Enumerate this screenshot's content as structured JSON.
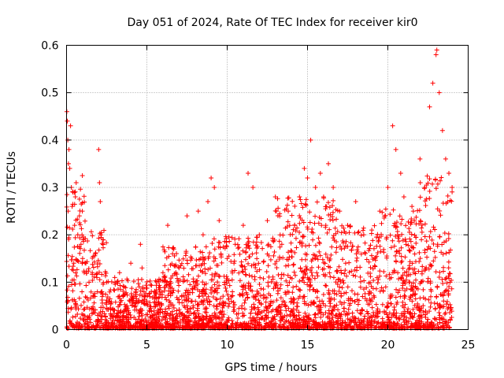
{
  "chart_data": {
    "type": "scatter",
    "title": "Day 051 of 2024, Rate Of TEC Index for receiver kir0",
    "xlabel": "GPS time / hours",
    "ylabel": "ROTI / TECUs",
    "xlim": [
      0,
      25
    ],
    "ylim": [
      0,
      0.6
    ],
    "xticks": [
      "0",
      "5",
      "10",
      "15",
      "20",
      "25"
    ],
    "yticks": [
      "0",
      "0.1",
      "0.2",
      "0.3",
      "0.4",
      "0.5",
      "0.6"
    ],
    "grid": true,
    "marker": "+",
    "color": "#ff0000",
    "series": [
      {
        "name": "ROTI",
        "x": [
          0.02,
          0.05,
          0.08,
          0.1,
          0.12,
          0.15,
          0.2,
          0.25,
          0.3,
          0.35,
          0.4,
          0.5,
          0.55,
          0.6,
          0.7,
          0.8,
          0.9,
          1.0,
          1.1,
          1.2,
          1.4,
          1.6,
          1.8,
          2.0,
          2.05,
          2.1,
          2.2,
          2.5,
          3.0,
          3.3,
          3.6,
          4.0,
          4.3,
          4.6,
          4.7,
          5.0,
          5.5,
          6.0,
          6.3,
          6.6,
          7.0,
          7.5,
          7.8,
          8.2,
          8.5,
          8.8,
          9.0,
          9.2,
          9.5,
          10.0,
          10.5,
          11.0,
          11.3,
          11.6,
          12.0,
          12.5,
          13.0,
          13.4,
          13.8,
          14.2,
          14.5,
          14.8,
          15.0,
          15.2,
          15.5,
          15.8,
          16.0,
          16.3,
          16.6,
          17.0,
          17.5,
          18.0,
          18.5,
          19.0,
          19.5,
          20.0,
          20.3,
          20.5,
          20.8,
          21.0,
          21.5,
          22.0,
          22.3,
          22.6,
          22.8,
          23.0,
          23.05,
          23.2,
          23.4,
          23.6,
          23.8,
          24.0
        ],
        "y": [
          0.46,
          0.44,
          0.4,
          0.25,
          0.35,
          0.38,
          0.34,
          0.43,
          0.3,
          0.26,
          0.29,
          0.22,
          0.28,
          0.31,
          0.2,
          0.24,
          0.18,
          0.15,
          0.12,
          0.14,
          0.1,
          0.12,
          0.16,
          0.38,
          0.31,
          0.27,
          0.08,
          0.1,
          0.11,
          0.12,
          0.09,
          0.14,
          0.07,
          0.18,
          0.13,
          0.06,
          0.08,
          0.12,
          0.22,
          0.16,
          0.13,
          0.24,
          0.15,
          0.25,
          0.2,
          0.27,
          0.32,
          0.3,
          0.23,
          0.15,
          0.18,
          0.22,
          0.33,
          0.3,
          0.2,
          0.23,
          0.28,
          0.18,
          0.25,
          0.22,
          0.28,
          0.34,
          0.32,
          0.4,
          0.3,
          0.33,
          0.28,
          0.35,
          0.3,
          0.25,
          0.22,
          0.27,
          0.2,
          0.21,
          0.25,
          0.3,
          0.43,
          0.38,
          0.33,
          0.28,
          0.26,
          0.36,
          0.3,
          0.47,
          0.52,
          0.58,
          0.59,
          0.5,
          0.42,
          0.36,
          0.33,
          0.3
        ]
      }
    ]
  }
}
